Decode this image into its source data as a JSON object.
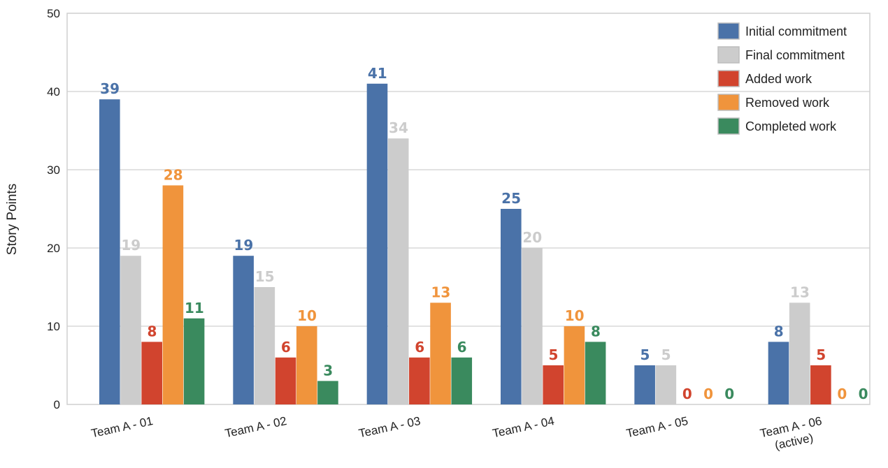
{
  "chart_data": {
    "type": "bar",
    "ylabel": "Story Points",
    "ylim": [
      0,
      50
    ],
    "yticks": [
      0,
      10,
      20,
      30,
      40,
      50
    ],
    "grid": true,
    "legend_position": "top-right",
    "categories": [
      [
        "Team A - 01"
      ],
      [
        "Team A - 02"
      ],
      [
        "Team A - 03"
      ],
      [
        "Team A - 04"
      ],
      [
        "Team A - 05"
      ],
      [
        "Team A - 06",
        "(active)"
      ]
    ],
    "series": [
      {
        "name": "Initial commitment",
        "color": "#4a72a8",
        "values": [
          39,
          19,
          41,
          25,
          5,
          8
        ]
      },
      {
        "name": "Final commitment",
        "color": "#cccccc",
        "values": [
          19,
          15,
          34,
          20,
          5,
          13
        ]
      },
      {
        "name": "Added work",
        "color": "#d1442e",
        "values": [
          8,
          6,
          6,
          5,
          0,
          5
        ]
      },
      {
        "name": "Removed work",
        "color": "#f0943c",
        "values": [
          28,
          10,
          13,
          10,
          0,
          0
        ]
      },
      {
        "name": "Completed work",
        "color": "#3a8a5e",
        "values": [
          11,
          3,
          6,
          8,
          0,
          0
        ]
      }
    ],
    "visible_labels": [
      [
        true,
        true,
        true,
        true,
        true
      ],
      [
        true,
        true,
        true,
        true,
        true
      ],
      [
        true,
        true,
        true,
        true,
        true
      ],
      [
        true,
        true,
        true,
        true,
        true
      ],
      [
        true,
        true,
        true,
        true,
        true
      ],
      [
        true,
        true,
        true,
        true,
        true
      ]
    ],
    "hidden_bars": [
      [
        false,
        false,
        false,
        false,
        false
      ],
      [
        false,
        false,
        false,
        false,
        false
      ],
      [
        false,
        false,
        false,
        false,
        false
      ],
      [
        false,
        false,
        false,
        false,
        false
      ],
      [
        false,
        false,
        true,
        true,
        true
      ],
      [
        false,
        false,
        false,
        true,
        true
      ]
    ]
  }
}
